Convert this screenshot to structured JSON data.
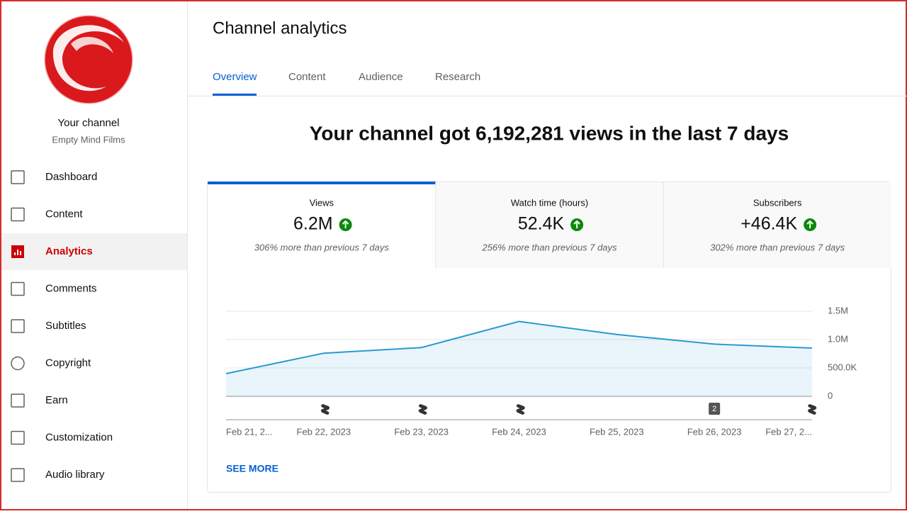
{
  "sidebar": {
    "channel_title": "Your channel",
    "channel_name": "Empty Mind Films",
    "nav": [
      "Dashboard",
      "Content",
      "Analytics",
      "Comments",
      "Subtitles",
      "Copyright",
      "Earn",
      "Customization",
      "Audio library"
    ]
  },
  "header": {
    "title": "Channel analytics",
    "tabs": [
      "Overview",
      "Content",
      "Audience",
      "Research"
    ]
  },
  "headline": "Your channel got 6,192,281 views in the last 7 days",
  "cards": [
    {
      "label": "Views",
      "value": "6.2M",
      "note": "306% more than previous 7 days"
    },
    {
      "label": "Watch time (hours)",
      "value": "52.4K",
      "note": "256% more than previous 7 days"
    },
    {
      "label": "Subscribers",
      "value": "+46.4K",
      "note": "302% more than previous 7 days"
    }
  ],
  "chart_data": {
    "type": "line",
    "categories": [
      "Feb 21, 2...",
      "Feb 22, 2023",
      "Feb 23, 2023",
      "Feb 24, 2023",
      "Feb 25, 2023",
      "Feb 26, 2023",
      "Feb 27, 2..."
    ],
    "series": [
      {
        "name": "Views",
        "color": "#2a9ad0",
        "values": [
          400000,
          760000,
          860000,
          1320000,
          1090000,
          920000,
          850000
        ]
      }
    ],
    "ylim": [
      0,
      1500000
    ],
    "yticks": [
      0,
      {
        "value": 500000,
        "label": "500.0K"
      },
      {
        "value": 1000000,
        "label": "1.0M"
      },
      {
        "value": 1500000,
        "label": "1.5M"
      }
    ],
    "grid": true,
    "annotation": "2"
  },
  "see_more": "SEE MORE"
}
